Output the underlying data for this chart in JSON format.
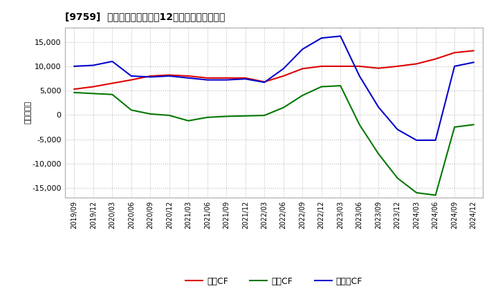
{
  "title": "[9759]  キャッシュフローの12か月移動合計の推移",
  "ylabel": "（百万円）",
  "background_color": "#ffffff",
  "grid_color": "#bbbbbb",
  "x_labels": [
    "2019/09",
    "2019/12",
    "2020/03",
    "2020/06",
    "2020/09",
    "2020/12",
    "2021/03",
    "2021/06",
    "2021/09",
    "2021/12",
    "2022/03",
    "2022/06",
    "2022/09",
    "2022/12",
    "2023/03",
    "2023/06",
    "2023/09",
    "2023/12",
    "2024/03",
    "2024/06",
    "2024/09",
    "2024/12"
  ],
  "operating_cf": [
    5300,
    5800,
    6500,
    7200,
    8000,
    8200,
    8000,
    7600,
    7600,
    7600,
    6800,
    8000,
    9500,
    10000,
    10000,
    10000,
    9600,
    10000,
    10500,
    11500,
    12800,
    13200
  ],
  "investing_cf": [
    4600,
    4400,
    4200,
    1000,
    200,
    -100,
    -1200,
    -500,
    -300,
    -200,
    -100,
    1500,
    4000,
    5800,
    6000,
    -2000,
    -8000,
    -13000,
    -16000,
    -16500,
    -2500,
    -2000
  ],
  "free_cf": [
    10000,
    10200,
    11000,
    8000,
    7800,
    8000,
    7600,
    7200,
    7200,
    7400,
    6700,
    9500,
    13500,
    15800,
    16200,
    8000,
    1600,
    -3000,
    -5200,
    -5200,
    10000,
    10800
  ],
  "operating_color": "#dd0000",
  "investing_color": "#007700",
  "free_color": "#0000cc",
  "ylim": [
    -17000,
    18000
  ],
  "yticks": [
    -15000,
    -10000,
    -5000,
    0,
    5000,
    10000,
    15000
  ],
  "legend_labels": [
    "営業CF",
    "投資CF",
    "フリーCF"
  ]
}
